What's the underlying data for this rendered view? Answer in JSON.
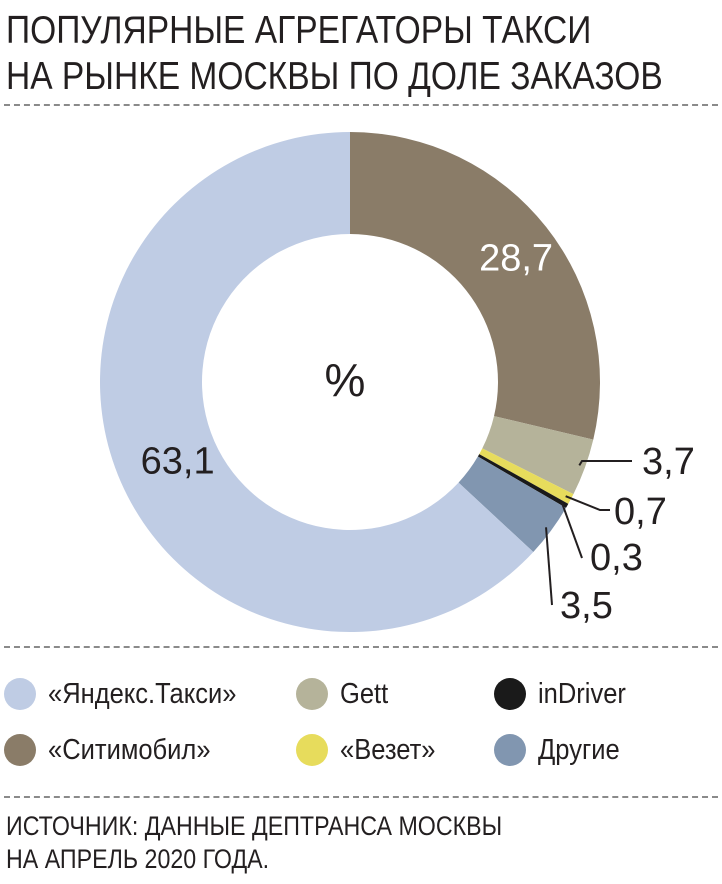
{
  "title": {
    "line1": "ПОПУЛЯРНЫЕ АГРЕГАТОРЫ ТАКСИ",
    "line2": "НА РЫНКЕ МОСКВЫ ПО ДОЛЕ ЗАКАЗОВ"
  },
  "chart_data": {
    "type": "pie",
    "donut": true,
    "center_label": "%",
    "start": "12 o'clock",
    "direction": "clockwise",
    "slices": [
      {
        "name": "«Ситимобил»",
        "value": 28.7,
        "label": "28,7",
        "color": "#8a7c68"
      },
      {
        "name": "Gett",
        "value": 3.7,
        "label": "3,7",
        "color": "#b5b39a"
      },
      {
        "name": "«Везет»",
        "value": 0.7,
        "label": "0,7",
        "color": "#e7dc5c"
      },
      {
        "name": "inDriver",
        "value": 0.3,
        "label": "0,3",
        "color": "#1a1a1a"
      },
      {
        "name": "Другие",
        "value": 3.5,
        "label": "3,5",
        "color": "#8196b0"
      },
      {
        "name": "«Яндекс.Такси»",
        "value": 63.1,
        "label": "63,1",
        "color": "#bfcce4"
      }
    ]
  },
  "legend": [
    {
      "label": "«Яндекс.Такси»",
      "color": "#bfcce4"
    },
    {
      "label": "Gett",
      "color": "#b5b39a"
    },
    {
      "label": "inDriver",
      "color": "#1a1a1a"
    },
    {
      "label": "«Ситимобил»",
      "color": "#8a7c68"
    },
    {
      "label": "«Везет»",
      "color": "#e7dc5c"
    },
    {
      "label": "Другие",
      "color": "#8196b0"
    }
  ],
  "source": {
    "line1": "ИСТОЧНИК: ДАННЫЕ ДЕПТРАНСА МОСКВЫ",
    "line2": "НА АПРЕЛЬ 2020 ГОДА."
  }
}
